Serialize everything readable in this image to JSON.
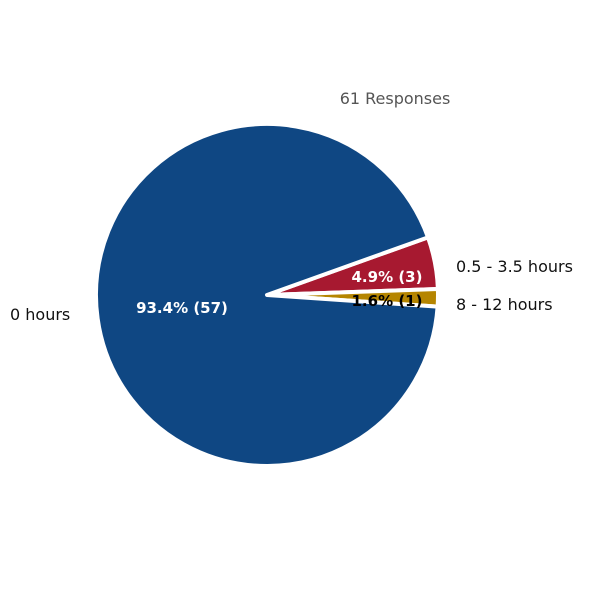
{
  "chart_data": {
    "type": "pie",
    "subtitle": "61 Responses",
    "total": 61,
    "slices": [
      {
        "category": "0 hours",
        "value": 57,
        "percent": 93.4,
        "label": "93.4% (57)",
        "color": "#0f4783",
        "label_color": "#ffffff"
      },
      {
        "category": "0.5 - 3.5 hours",
        "value": 3,
        "percent": 4.9,
        "label": "4.9% (3)",
        "color": "#a71930",
        "label_color": "#ffffff"
      },
      {
        "category": "8 - 12 hours",
        "value": 1,
        "percent": 1.6,
        "label": "1.6% (1)",
        "color": "#b58500",
        "label_color": "#000000"
      }
    ]
  }
}
